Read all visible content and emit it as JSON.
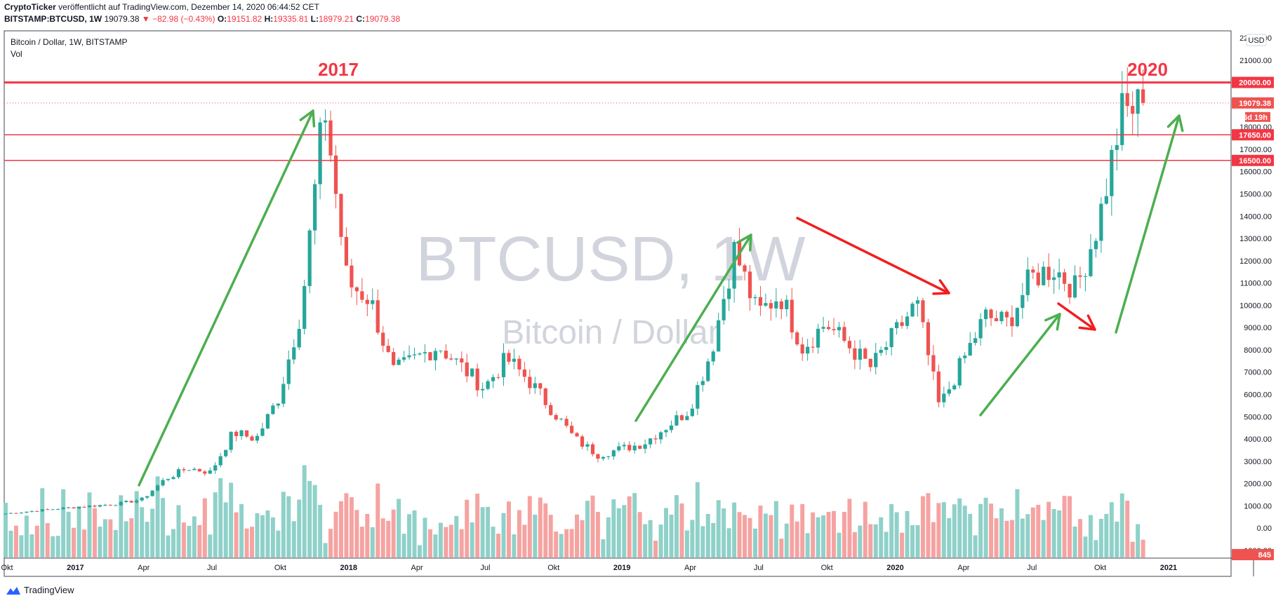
{
  "header": {
    "publisher": "CryptoTicker",
    "published_text": "veröffentlicht auf TradingView.com, Dezember 14, 2020 06:44:52 CET",
    "symbol": "BITSTAMP:BTCUSD, 1W",
    "last": "19079.38",
    "change": "−82.98 (−0.43%)",
    "o_label": "O:",
    "o_value": "19151.82",
    "h_label": "H:",
    "h_value": "19335.81",
    "l_label": "L:",
    "l_value": "18979.21",
    "c_label": "C:",
    "c_value": "19079.38"
  },
  "legend": {
    "title": "Bitcoin / Dollar, 1W, BITSTAMP",
    "vol": "Vol"
  },
  "watermark": {
    "symbol": "BTCUSD, 1W",
    "name": "Bitcoin / Dollar"
  },
  "annotations": {
    "year_left": "2017",
    "year_right": "2020"
  },
  "axis": {
    "currency": "USD",
    "y_ticks": [
      "22000.00",
      "21000.00",
      "20000.00",
      "19000.00",
      "18000.00",
      "17000.00",
      "16000.00",
      "15000.00",
      "14000.00",
      "13000.00",
      "12000.00",
      "11000.00",
      "10000.00",
      "9000.00",
      "8000.00",
      "7000.00",
      "6000.00",
      "5000.00",
      "4000.00",
      "3000.00",
      "2000.00",
      "1000.00",
      "0.00",
      "-1000.00"
    ],
    "x_ticks": [
      "Okt",
      "2017",
      "Apr",
      "Jul",
      "Okt",
      "2018",
      "Apr",
      "Jul",
      "Okt",
      "2019",
      "Apr",
      "Jul",
      "Okt",
      "2020",
      "Apr",
      "Jul",
      "Okt",
      "2021"
    ],
    "price_labels": [
      {
        "text": "20000.00",
        "color": "#f23645"
      },
      {
        "text": "19079.38",
        "color": "#ef5350"
      },
      {
        "text": "6d 19h",
        "color": "#ef5350"
      },
      {
        "text": "17650.00",
        "color": "#f23645"
      },
      {
        "text": "16500.00",
        "color": "#f23645"
      },
      {
        "text": "845",
        "color": "#ef5350"
      }
    ]
  },
  "colors": {
    "up": "#26a69a",
    "down": "#ef5350",
    "vol_up": "#8fd1c9",
    "vol_down": "#f5a3a1",
    "level": "#f23645",
    "arrow_green": "#4caf50",
    "arrow_red": "#f21e1e"
  },
  "chart_data": {
    "type": "candlestick",
    "title": "Bitcoin / Dollar, 1W, BITSTAMP",
    "ylim": [
      -1000,
      22500
    ],
    "horizontal_levels": [
      20000,
      17650,
      16500
    ],
    "last_price": 19079.38,
    "price_path": [
      [
        "2016-10",
        650
      ],
      [
        "2016-12",
        850
      ],
      [
        "2017-03",
        1100
      ],
      [
        "2017-04",
        1300
      ],
      [
        "2017-05",
        2200
      ],
      [
        "2017-06",
        2700
      ],
      [
        "2017-07",
        2500
      ],
      [
        "2017-08",
        4300
      ],
      [
        "2017-09",
        4000
      ],
      [
        "2017-10",
        5900
      ],
      [
        "2017-11",
        9900
      ],
      [
        "2017-12",
        19000
      ],
      [
        "2018-01",
        11000
      ],
      [
        "2018-02",
        10300
      ],
      [
        "2018-03",
        7000
      ],
      [
        "2018-05",
        8200
      ],
      [
        "2018-07",
        6300
      ],
      [
        "2018-08",
        7600
      ],
      [
        "2018-09",
        6600
      ],
      [
        "2018-11",
        4000
      ],
      [
        "2018-12",
        3300
      ],
      [
        "2019-02",
        3800
      ],
      [
        "2019-04",
        5300
      ],
      [
        "2019-05",
        8000
      ],
      [
        "2019-06",
        12500
      ],
      [
        "2019-07",
        9600
      ],
      [
        "2019-08",
        10500
      ],
      [
        "2019-09",
        8100
      ],
      [
        "2019-10",
        9200
      ],
      [
        "2019-12",
        7200
      ],
      [
        "2020-02",
        10100
      ],
      [
        "2020-03",
        5400
      ],
      [
        "2020-05",
        9500
      ],
      [
        "2020-06",
        9200
      ],
      [
        "2020-07",
        11200
      ],
      [
        "2020-08",
        11700
      ],
      [
        "2020-09",
        10700
      ],
      [
        "2020-10",
        13800
      ],
      [
        "2020-11",
        18600
      ],
      [
        "2020-12",
        19079
      ]
    ]
  }
}
